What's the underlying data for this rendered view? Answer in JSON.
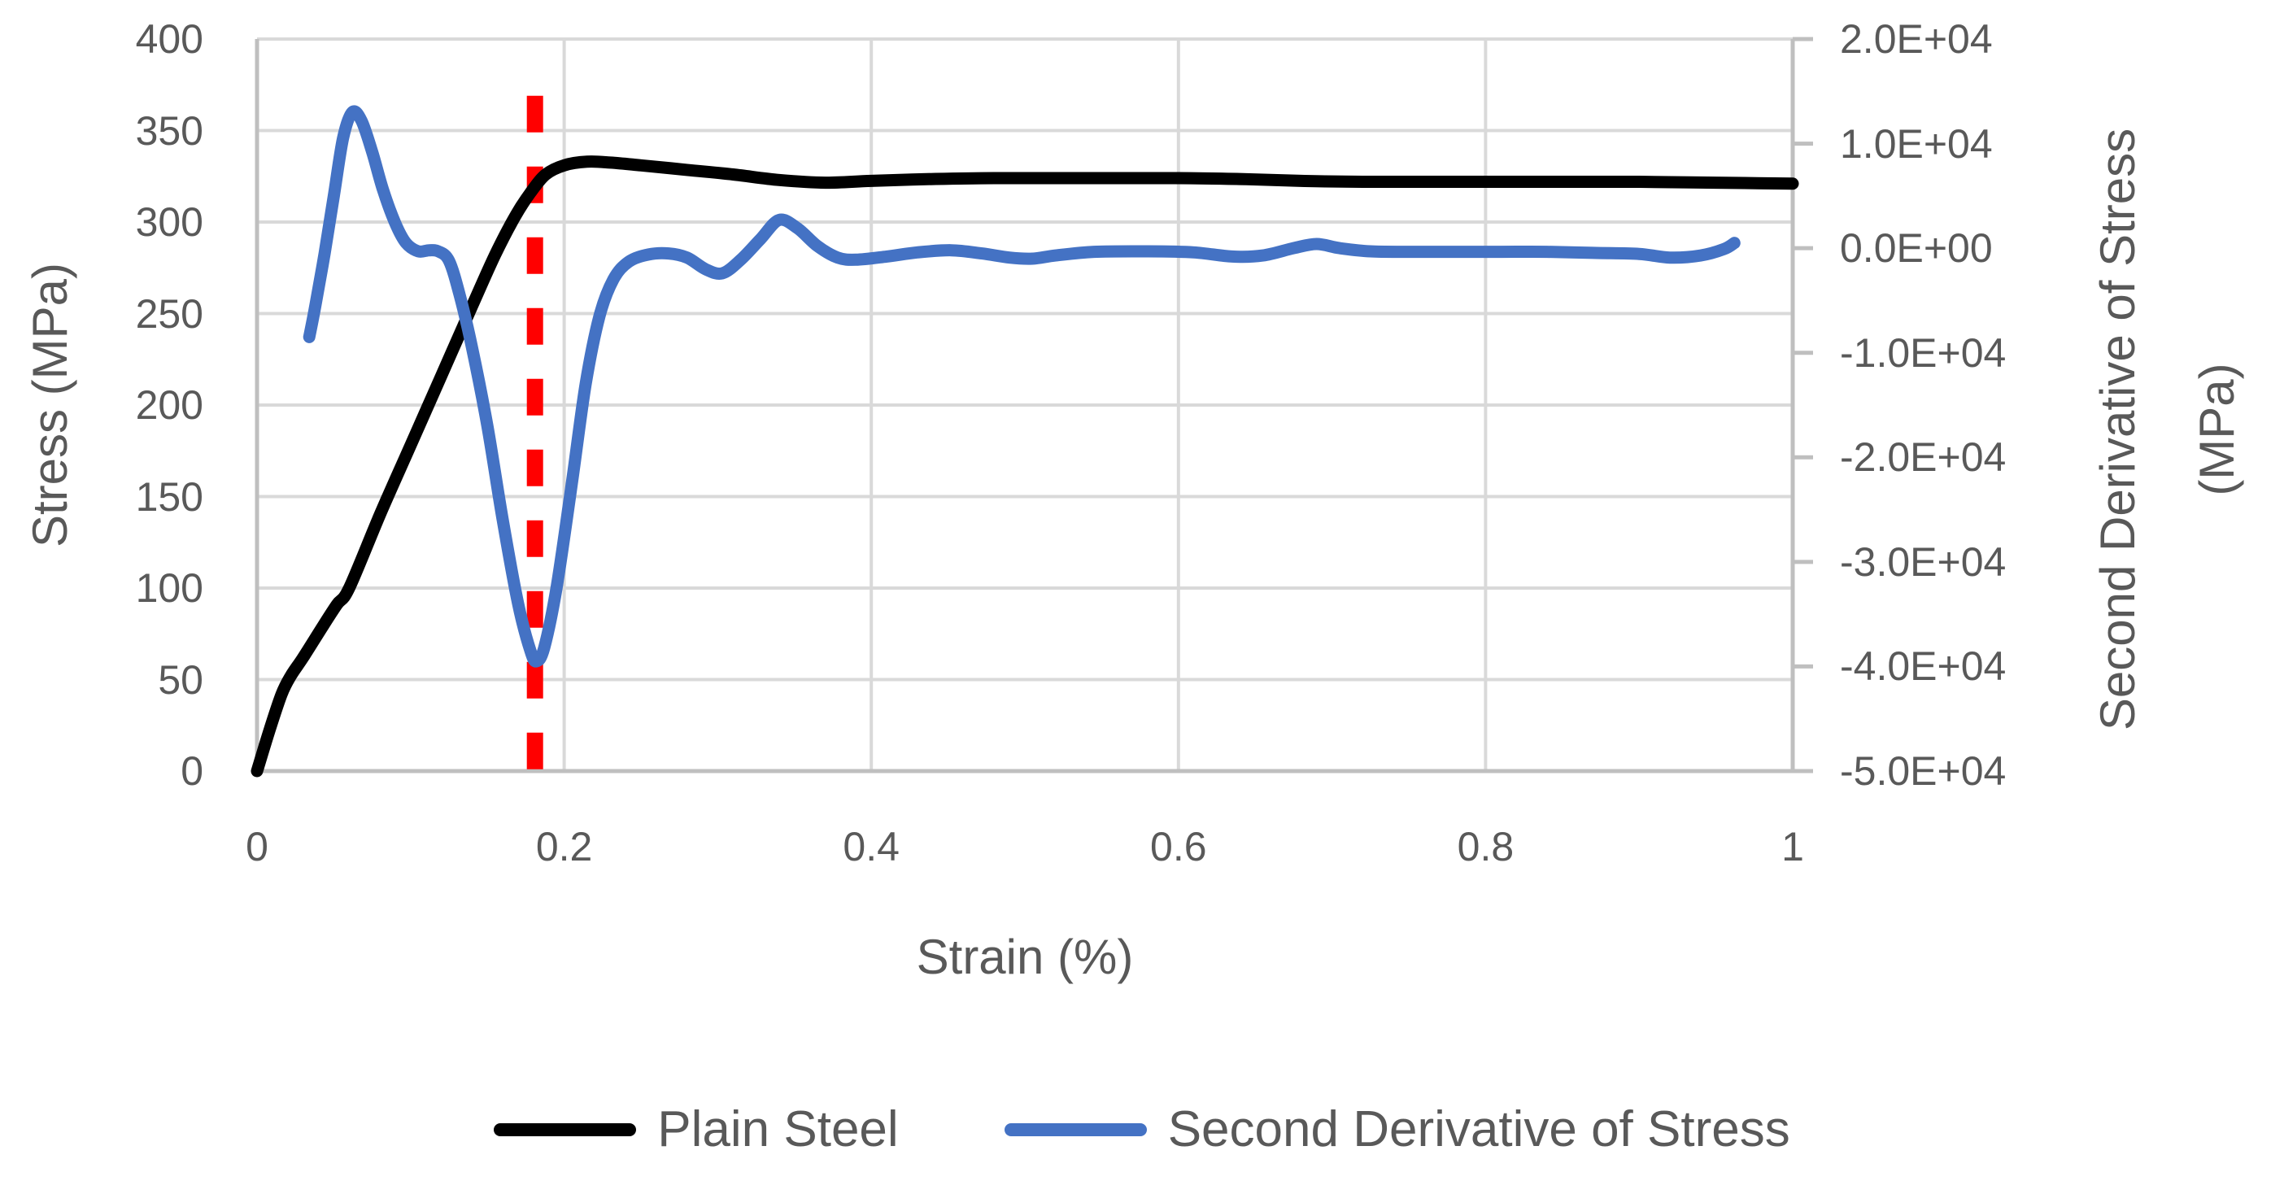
{
  "colors": {
    "series_black": "#000000",
    "series_blue": "#4472C4",
    "marker_red": "#FF0000",
    "gridline": "#D9D9D9",
    "axis_line": "#BFBFBF",
    "text": "#595959"
  },
  "chart_data": {
    "type": "line",
    "title": "",
    "xlabel": "Strain (%)",
    "ylabel_left": "Stress (MPa)",
    "ylabel_right_line1": "Second Derivative of Stress",
    "ylabel_right_line2": "(MPa)",
    "grid": {
      "horizontal": true,
      "vertical": true
    },
    "legend_position": "bottom",
    "x_axis": {
      "min": 0,
      "max": 1,
      "tick_values": [
        0,
        0.2,
        0.4,
        0.6,
        0.8,
        1
      ],
      "tick_labels": [
        "0",
        "0.2",
        "0.4",
        "0.6",
        "0.8",
        "1"
      ]
    },
    "y_left": {
      "min": 0,
      "max": 400,
      "tick_values": [
        400,
        350,
        300,
        250,
        200,
        150,
        100,
        50,
        0
      ],
      "tick_labels": [
        "400",
        "350",
        "300",
        "250",
        "200",
        "150",
        "100",
        "50",
        "0"
      ]
    },
    "y_right": {
      "min": -50000,
      "max": 20000,
      "tick_values": [
        20000,
        10000,
        0,
        -10000,
        -20000,
        -30000,
        -40000,
        -50000
      ],
      "tick_labels": [
        "2.0E+04",
        "1.0E+04",
        "0.0E+00",
        "-1.0E+04",
        "-2.0E+04",
        "-3.0E+04",
        "-4.0E+04",
        "-5.0E+04"
      ]
    },
    "annotation": {
      "label": "yield-strain-marker",
      "type": "vline",
      "x": 0.181,
      "y_span_mpa": [
        0,
        369
      ],
      "color": "#FF0000",
      "dash": [
        45,
        42
      ],
      "width": 20
    },
    "series": [
      {
        "id": "plain-steel",
        "name": "Plain Steel",
        "axis": "left",
        "color": "#000000",
        "points": [
          [
            0,
            0
          ],
          [
            0.008,
            22
          ],
          [
            0.016,
            42
          ],
          [
            0.022,
            52
          ],
          [
            0.03,
            62
          ],
          [
            0.042,
            78
          ],
          [
            0.052,
            91
          ],
          [
            0.06,
            100
          ],
          [
            0.08,
            140
          ],
          [
            0.1,
            178
          ],
          [
            0.12,
            216
          ],
          [
            0.14,
            254
          ],
          [
            0.155,
            282
          ],
          [
            0.168,
            303
          ],
          [
            0.178,
            316
          ],
          [
            0.188,
            326
          ],
          [
            0.2,
            331
          ],
          [
            0.215,
            333
          ],
          [
            0.23,
            332.5
          ],
          [
            0.25,
            331
          ],
          [
            0.28,
            328.5
          ],
          [
            0.31,
            326
          ],
          [
            0.34,
            323
          ],
          [
            0.37,
            321.5
          ],
          [
            0.4,
            322.5
          ],
          [
            0.44,
            323.5
          ],
          [
            0.48,
            324
          ],
          [
            0.54,
            324
          ],
          [
            0.6,
            324
          ],
          [
            0.64,
            323.5
          ],
          [
            0.68,
            322.5
          ],
          [
            0.72,
            322
          ],
          [
            0.78,
            322
          ],
          [
            0.84,
            322
          ],
          [
            0.9,
            322
          ],
          [
            0.95,
            321.5
          ],
          [
            1.0,
            321
          ]
        ]
      },
      {
        "id": "second-derivative",
        "name": "Second Derivative of Stress",
        "axis": "right",
        "color": "#4472C4",
        "points": [
          [
            0.034,
            -8500
          ],
          [
            0.038,
            -5500
          ],
          [
            0.044,
            -500
          ],
          [
            0.05,
            5000
          ],
          [
            0.056,
            10500
          ],
          [
            0.062,
            13000
          ],
          [
            0.068,
            12200
          ],
          [
            0.075,
            9200
          ],
          [
            0.082,
            5600
          ],
          [
            0.09,
            2400
          ],
          [
            0.097,
            500
          ],
          [
            0.105,
            -300
          ],
          [
            0.112,
            -200
          ],
          [
            0.118,
            -300
          ],
          [
            0.125,
            -1200
          ],
          [
            0.132,
            -4500
          ],
          [
            0.14,
            -9500
          ],
          [
            0.15,
            -17000
          ],
          [
            0.16,
            -26000
          ],
          [
            0.17,
            -34000
          ],
          [
            0.178,
            -38500
          ],
          [
            0.182,
            -39500
          ],
          [
            0.187,
            -38200
          ],
          [
            0.195,
            -32500
          ],
          [
            0.205,
            -22500
          ],
          [
            0.214,
            -13000
          ],
          [
            0.223,
            -6500
          ],
          [
            0.232,
            -3000
          ],
          [
            0.242,
            -1300
          ],
          [
            0.255,
            -600
          ],
          [
            0.268,
            -500
          ],
          [
            0.28,
            -900
          ],
          [
            0.292,
            -2000
          ],
          [
            0.303,
            -2400
          ],
          [
            0.315,
            -1100
          ],
          [
            0.328,
            900
          ],
          [
            0.34,
            2700
          ],
          [
            0.352,
            1900
          ],
          [
            0.365,
            200
          ],
          [
            0.378,
            -900
          ],
          [
            0.39,
            -1100
          ],
          [
            0.41,
            -800
          ],
          [
            0.43,
            -400
          ],
          [
            0.452,
            -200
          ],
          [
            0.472,
            -500
          ],
          [
            0.49,
            -900
          ],
          [
            0.505,
            -1000
          ],
          [
            0.52,
            -700
          ],
          [
            0.545,
            -350
          ],
          [
            0.58,
            -300
          ],
          [
            0.61,
            -400
          ],
          [
            0.635,
            -800
          ],
          [
            0.655,
            -700
          ],
          [
            0.675,
            0
          ],
          [
            0.69,
            400
          ],
          [
            0.705,
            0
          ],
          [
            0.725,
            -300
          ],
          [
            0.75,
            -350
          ],
          [
            0.78,
            -350
          ],
          [
            0.81,
            -350
          ],
          [
            0.84,
            -350
          ],
          [
            0.87,
            -450
          ],
          [
            0.9,
            -550
          ],
          [
            0.92,
            -900
          ],
          [
            0.94,
            -700
          ],
          [
            0.955,
            -100
          ],
          [
            0.962,
            500
          ]
        ]
      }
    ]
  }
}
